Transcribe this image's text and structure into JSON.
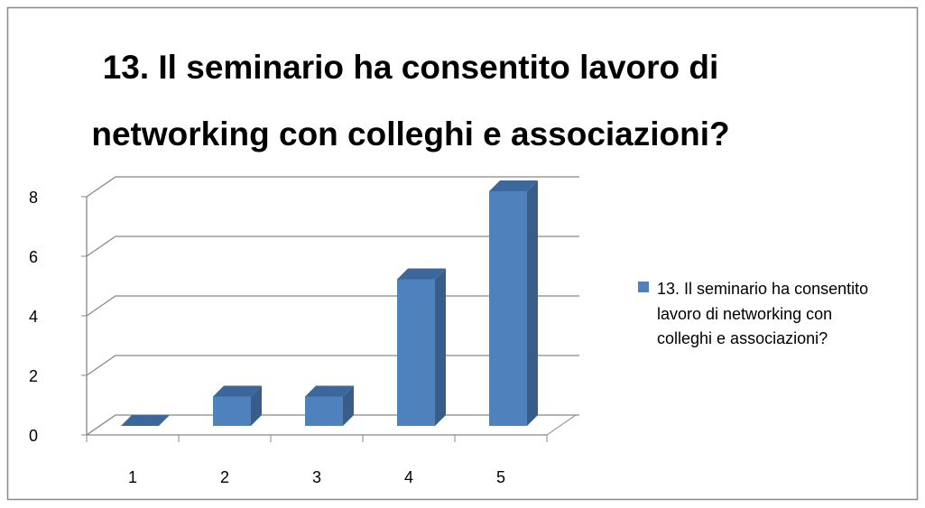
{
  "chart_data": {
    "type": "bar3d",
    "title": "13. Il seminario ha consentito lavoro di networking con colleghi e associazioni?",
    "categories": [
      "1",
      "2",
      "3",
      "4",
      "5"
    ],
    "series": [
      {
        "name": "13. Il seminario ha consentito lavoro di networking con colleghi e associazioni?",
        "color": "#4f81bd",
        "values": [
          0,
          1,
          1,
          5,
          8
        ]
      }
    ],
    "ylim": [
      0,
      8
    ],
    "yticks": [
      0,
      2,
      4,
      6,
      8
    ],
    "grid": true,
    "legend": "right"
  }
}
